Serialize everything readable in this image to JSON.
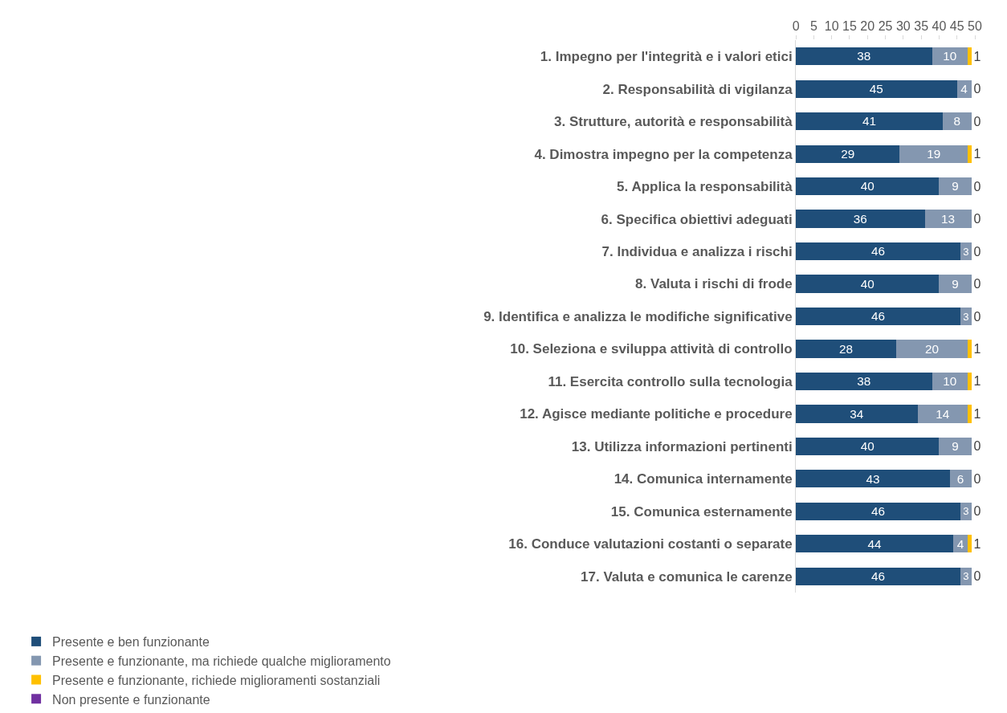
{
  "chart_data": {
    "type": "bar",
    "orientation": "horizontal",
    "stacked": true,
    "categories": [
      "1. Impegno per l'integrità e i valori etici",
      "2. Responsabilità di vigilanza",
      "3. Strutture, autorità e responsabilità",
      "4. Dimostra impegno per la competenza",
      "5. Applica la responsabilità",
      "6. Specifica obiettivi adeguati",
      "7. Individua e analizza i rischi",
      "8. Valuta i rischi di frode",
      "9. Identifica e analizza le modifiche significative",
      "10. Seleziona e sviluppa attività di controllo",
      "11. Esercita controllo sulla tecnologia",
      "12. Agisce mediante politiche e procedure",
      "13. Utilizza informazioni pertinenti",
      "14. Comunica internamente",
      "15. Comunica esternamente",
      "16. Conduce valutazioni costanti o separate",
      "17. Valuta e comunica le carenze"
    ],
    "series": [
      {
        "name": "Presente e ben funzionante",
        "color": "#1f4e79",
        "values": [
          38,
          45,
          41,
          29,
          40,
          36,
          46,
          40,
          46,
          28,
          38,
          34,
          40,
          43,
          46,
          44,
          46
        ]
      },
      {
        "name": "Presente e funzionante, ma richiede qualche miglioramento",
        "color": "#8497b0",
        "values": [
          10,
          4,
          8,
          19,
          9,
          13,
          3,
          9,
          3,
          20,
          10,
          14,
          9,
          6,
          3,
          4,
          3
        ]
      },
      {
        "name": "Presente e funzionante, richiede miglioramenti sostanziali",
        "color": "#ffc000",
        "values": [
          1,
          0,
          0,
          1,
          0,
          0,
          0,
          0,
          0,
          1,
          1,
          1,
          0,
          0,
          0,
          1,
          0
        ]
      },
      {
        "name": "Non presente e funzionante",
        "color": "#7030a0",
        "values": [
          0,
          0,
          0,
          0,
          0,
          0,
          0,
          0,
          0,
          0,
          0,
          0,
          0,
          0,
          0,
          0,
          0
        ],
        "value_labels": [
          null,
          null,
          null,
          null,
          null,
          null,
          null,
          null,
          null,
          null,
          null,
          null,
          null,
          null,
          null,
          null,
          null
        ]
      }
    ],
    "xlim": [
      0,
      50
    ],
    "xticks": [
      0,
      5,
      10,
      15,
      20,
      25,
      30,
      35,
      40,
      45,
      50
    ],
    "legend": "bottom",
    "data_labels": true
  }
}
